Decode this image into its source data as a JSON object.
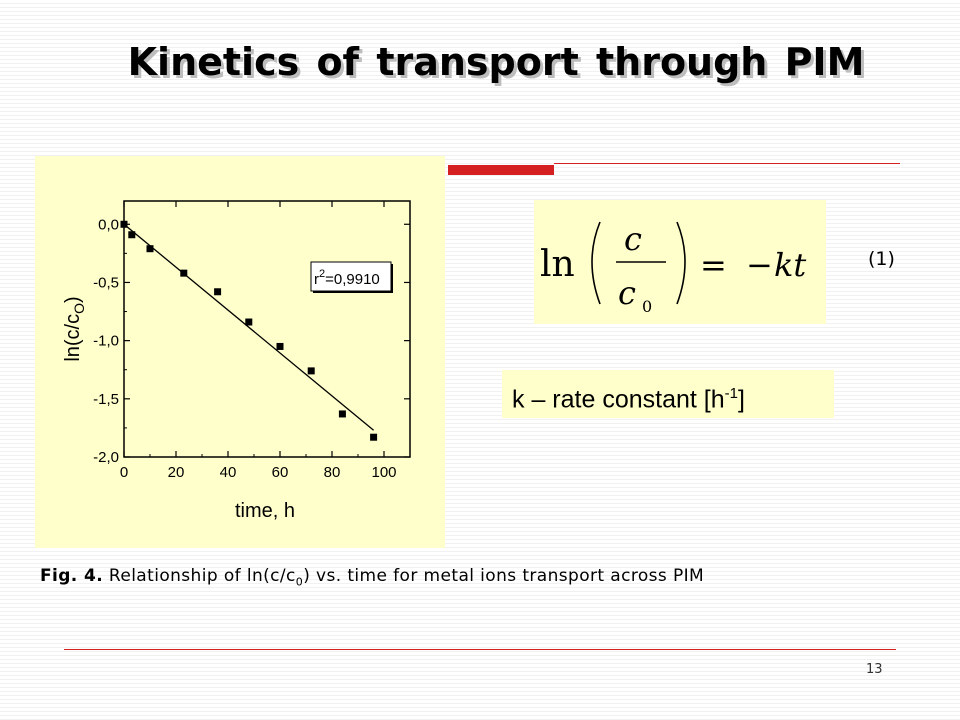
{
  "slide": {
    "title": "Kinetics   of   transport  through PIM",
    "equation_number": "(1)",
    "rate_constant": {
      "text": "k – rate constant [h",
      "sup": "-1",
      "suffix": "]"
    },
    "caption": {
      "label": "Fig. 4.",
      "text_before": " Relationship of ln(c/c",
      "sub": "0",
      "text_after": ") vs. time for metal ions transport across PIM"
    },
    "page_number": "13",
    "colors": {
      "accent": "#d42020",
      "panel": "#ffffcc"
    }
  },
  "formula": {
    "ln": "ln",
    "numerator": "c",
    "denominator": "c",
    "denominator_sub": "0",
    "equals": "=",
    "minus": "−",
    "rhs": "kt"
  },
  "chart_data": {
    "type": "scatter",
    "xlabel": "time, h",
    "ylabel": "ln(c/c",
    "ylabel_sub": "O",
    "ylabel_suffix": ")",
    "xlim": [
      0,
      110
    ],
    "ylim": [
      -2.0,
      0.2
    ],
    "xticks": [
      0,
      20,
      40,
      60,
      80,
      100
    ],
    "xtick_labels": [
      "0",
      "20",
      "40",
      "60",
      "80",
      "100"
    ],
    "yticks": [
      0.0,
      -0.5,
      -1.0,
      -1.5,
      -2.0
    ],
    "ytick_labels": [
      "0,0",
      "-0,5",
      "-1,0",
      "-1,5",
      "-2,0"
    ],
    "series": [
      {
        "x": [
          0,
          3,
          10,
          23,
          36,
          48,
          60,
          72,
          84,
          96
        ],
        "y": [
          0.0,
          -0.09,
          -0.21,
          -0.42,
          -0.58,
          -0.84,
          -1.05,
          -1.26,
          -1.63,
          -1.83
        ]
      }
    ],
    "fit_line": {
      "x": [
        0,
        96
      ],
      "y": [
        0.0,
        -1.77
      ]
    },
    "annotation": {
      "prefix": "r",
      "sup": "2",
      "value": "=0,9910"
    },
    "grid": false
  }
}
